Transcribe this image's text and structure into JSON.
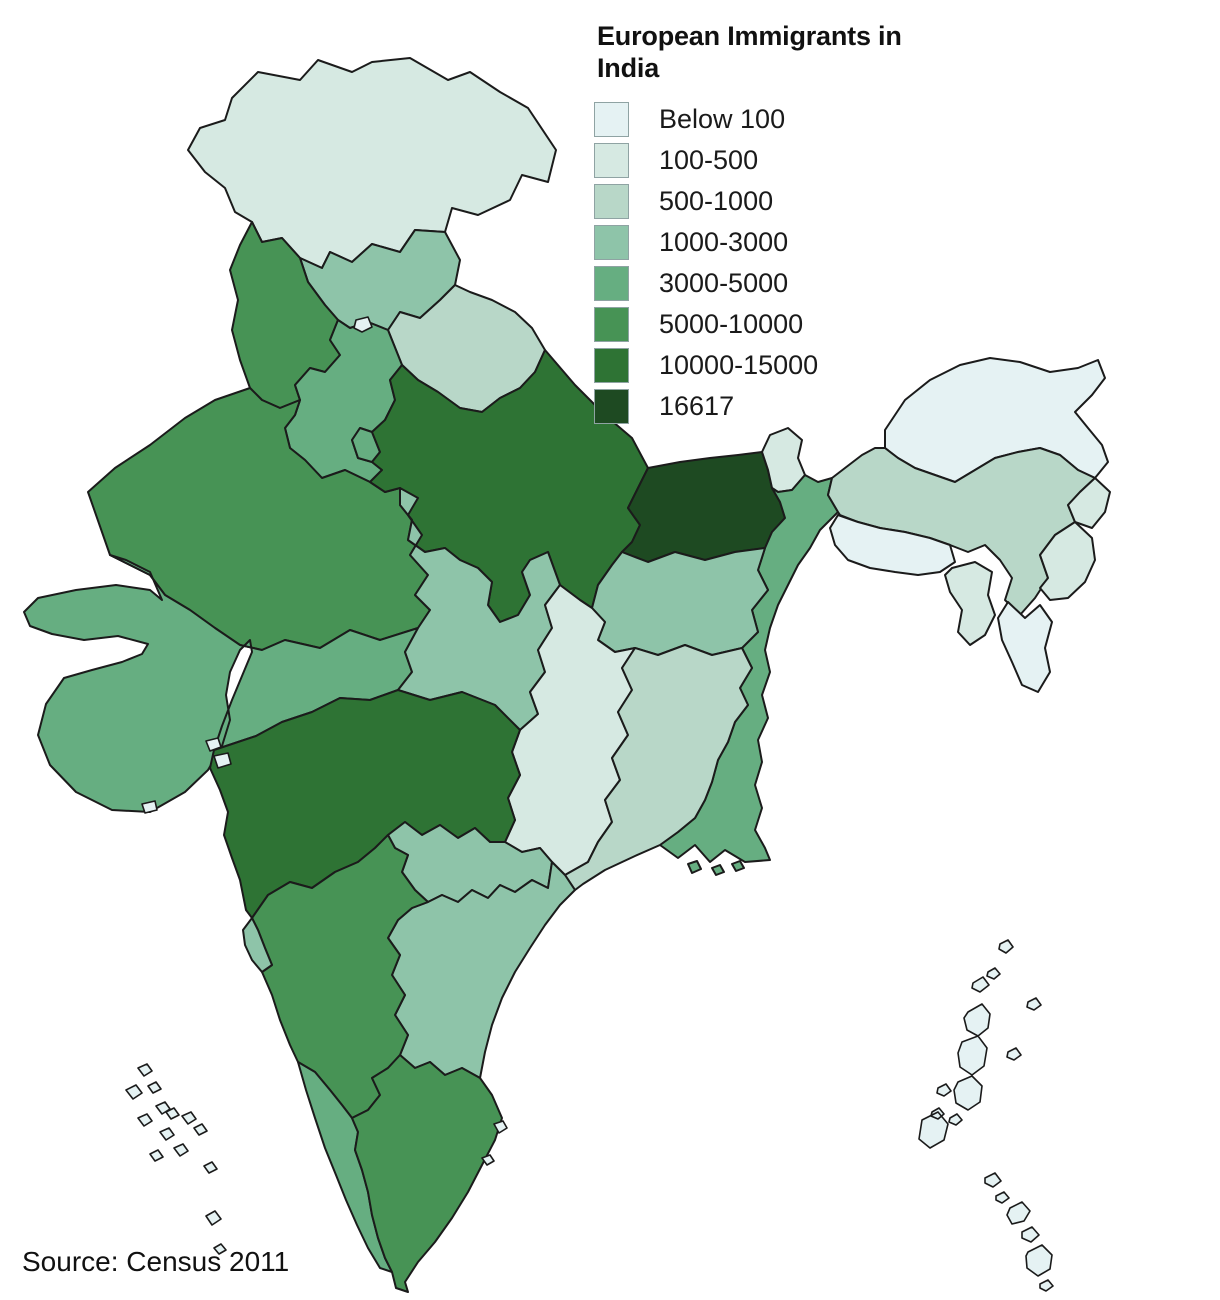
{
  "title": "European Immigrants in India",
  "source_note": "Source: Census 2011",
  "colors": {
    "background": "#ffffff",
    "state_border": "#1b1b1b",
    "text": "#111111",
    "swatch_border": "#8fa3a3"
  },
  "legend": [
    {
      "label": "Below 100",
      "color": "#e5f2f3"
    },
    {
      "label": "100-500",
      "color": "#d6e9e2"
    },
    {
      "label": "500-1000",
      "color": "#b8d7c8"
    },
    {
      "label": "1000-3000",
      "color": "#8ec4a9"
    },
    {
      "label": "3000-5000",
      "color": "#66ae81"
    },
    {
      "label": "5000-10000",
      "color": "#479355"
    },
    {
      "label": "10000-15000",
      "color": "#2e7334"
    },
    {
      "label": "16617",
      "color": "#1e4a22"
    }
  ],
  "map": {
    "states": [
      {
        "key": "jammu-kashmir",
        "name": "Jammu & Kashmir",
        "category": "100-500"
      },
      {
        "key": "himachal-pradesh",
        "name": "Himachal Pradesh",
        "category": "1000-3000"
      },
      {
        "key": "punjab",
        "name": "Punjab",
        "category": "5000-10000"
      },
      {
        "key": "chandigarh",
        "name": "Chandigarh",
        "category": "Below 100"
      },
      {
        "key": "uttarakhand",
        "name": "Uttarakhand",
        "category": "500-1000"
      },
      {
        "key": "haryana",
        "name": "Haryana",
        "category": "3000-5000"
      },
      {
        "key": "delhi",
        "name": "Delhi",
        "category": "3000-5000"
      },
      {
        "key": "rajasthan",
        "name": "Rajasthan",
        "category": "5000-10000"
      },
      {
        "key": "gujarat",
        "name": "Gujarat",
        "category": "3000-5000"
      },
      {
        "key": "daman",
        "name": "Daman",
        "category": "Below 100"
      },
      {
        "key": "dadra-nagar-haveli",
        "name": "Dadra & Nagar Haveli",
        "category": "Below 100"
      },
      {
        "key": "diu",
        "name": "Diu",
        "category": "Below 100"
      },
      {
        "key": "uttar-pradesh",
        "name": "Uttar Pradesh",
        "category": "10000-15000"
      },
      {
        "key": "bihar",
        "name": "Bihar",
        "category": "16617"
      },
      {
        "key": "sikkim",
        "name": "Sikkim",
        "category": "100-500"
      },
      {
        "key": "west-bengal",
        "name": "West Bengal",
        "category": "3000-5000"
      },
      {
        "key": "jharkhand",
        "name": "Jharkhand",
        "category": "1000-3000"
      },
      {
        "key": "madhya-pradesh",
        "name": "Madhya Pradesh",
        "category": "1000-3000"
      },
      {
        "key": "chhattisgarh",
        "name": "Chhattisgarh",
        "category": "100-500"
      },
      {
        "key": "odisha",
        "name": "Odisha",
        "category": "500-1000"
      },
      {
        "key": "maharashtra",
        "name": "Maharashtra",
        "category": "10000-15000"
      },
      {
        "key": "telangana",
        "name": "Telangana",
        "category": "1000-3000"
      },
      {
        "key": "andhra-pradesh",
        "name": "Andhra Pradesh",
        "category": "1000-3000"
      },
      {
        "key": "karnataka",
        "name": "Karnataka",
        "category": "5000-10000"
      },
      {
        "key": "goa",
        "name": "Goa",
        "category": "1000-3000"
      },
      {
        "key": "kerala",
        "name": "Kerala",
        "category": "3000-5000"
      },
      {
        "key": "tamil-nadu",
        "name": "Tamil Nadu",
        "category": "5000-10000"
      },
      {
        "key": "puducherry",
        "name": "Puducherry",
        "category": "Below 100"
      },
      {
        "key": "arunachal-pradesh",
        "name": "Arunachal Pradesh",
        "category": "Below 100"
      },
      {
        "key": "assam",
        "name": "Assam",
        "category": "500-1000"
      },
      {
        "key": "meghalaya",
        "name": "Meghalaya",
        "category": "Below 100"
      },
      {
        "key": "nagaland",
        "name": "Nagaland",
        "category": "100-500"
      },
      {
        "key": "manipur",
        "name": "Manipur",
        "category": "100-500"
      },
      {
        "key": "mizoram",
        "name": "Mizoram",
        "category": "Below 100"
      },
      {
        "key": "tripura",
        "name": "Tripura",
        "category": "100-500"
      },
      {
        "key": "lakshadweep",
        "name": "Lakshadweep",
        "category": "Below 100"
      },
      {
        "key": "andaman-nicobar",
        "name": "Andaman & Nicobar Islands",
        "category": "Below 100"
      }
    ]
  }
}
